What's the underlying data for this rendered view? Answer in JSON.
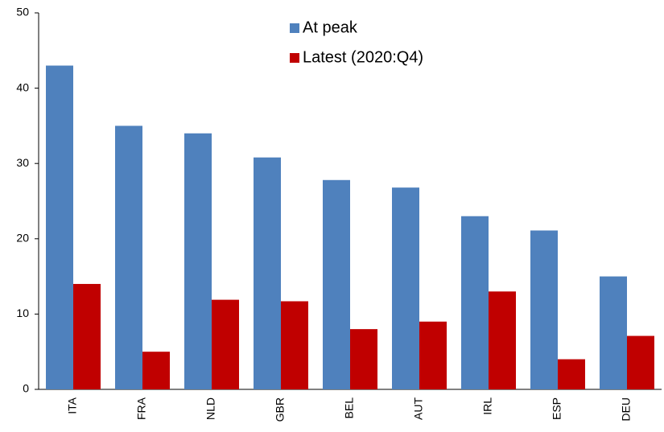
{
  "chart_data": {
    "type": "bar",
    "categories": [
      "ITA",
      "FRA",
      "NLD",
      "GBR",
      "BEL",
      "AUT",
      "IRL",
      "ESP",
      "DEU"
    ],
    "series": [
      {
        "name": "At peak",
        "color": "#4f81bd",
        "values": [
          43,
          35,
          34,
          30.8,
          27.8,
          26.8,
          23,
          21.1,
          15
        ]
      },
      {
        "name": "Latest (2020:Q4)",
        "color": "#c00000",
        "values": [
          14,
          5,
          11.9,
          11.7,
          8,
          9,
          13,
          4,
          7.1
        ]
      }
    ],
    "ylim": [
      0,
      50
    ],
    "yticks": [
      0,
      10,
      20,
      30,
      40,
      50
    ],
    "grid": false,
    "legend": "top"
  }
}
